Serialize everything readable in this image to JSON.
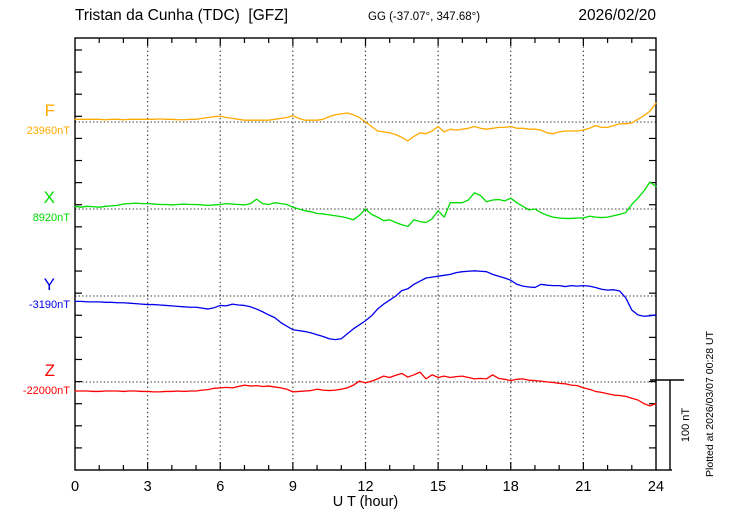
{
  "header": {
    "station_title": "Tristan da Cunha (TDC)  [GFZ]",
    "coords": "GG (-37.07°, 347.68°)",
    "date": "2026/02/20"
  },
  "footer_note": "Plotted at 2026/03/07 00:28 UT",
  "scale_bar": {
    "label": "100 nT",
    "nT": 100
  },
  "chart_data": {
    "type": "line",
    "title": "Tristan da Cunha (TDC) [GFZ] magnetogram 2026/02/20",
    "xlabel": "U T (hour)",
    "x_ticks": [
      0,
      3,
      6,
      9,
      12,
      15,
      18,
      21,
      24
    ],
    "xlim": [
      0,
      24
    ],
    "grid": "vertical-dotted-every-3h, dotted-baseline-per-trace",
    "legend_position": "left-of-axis",
    "step_hours": 0.25,
    "series": [
      {
        "id": "F",
        "label": "F",
        "baseline_label": "23960nT",
        "baseline_value": 23960,
        "color": "#ffaa00",
        "units": "nT",
        "offsets_nT": [
          3,
          3,
          3,
          3,
          3,
          2.5,
          3,
          3,
          2.5,
          3,
          3,
          3,
          3,
          3,
          3.5,
          3,
          3,
          2.5,
          2.5,
          3,
          3,
          4,
          5,
          6,
          6.5,
          5,
          4,
          3,
          2,
          2,
          2,
          2,
          2,
          3,
          4,
          5,
          7,
          4,
          2,
          2,
          2,
          3,
          6,
          8,
          9,
          10,
          8,
          5,
          0,
          -5,
          -10,
          -11,
          -12,
          -14,
          -17,
          -21,
          -16,
          -12,
          -13,
          -10,
          -5,
          -11,
          -8,
          -9,
          -8,
          -7,
          -5,
          -7,
          -8,
          -7,
          -6,
          -6,
          -5,
          -7,
          -7,
          -8,
          -8,
          -9,
          -12,
          -13,
          -11,
          -10,
          -10,
          -10,
          -9,
          -7,
          -4,
          -6,
          -6,
          -4,
          -2,
          -2,
          -1,
          3,
          7,
          12,
          21
        ]
      },
      {
        "id": "X",
        "label": "X",
        "baseline_label": "8920nT",
        "baseline_value": 8920,
        "color": "#00dd00",
        "units": "nT",
        "offsets_nT": [
          3,
          2,
          3,
          2.5,
          2,
          3,
          3.5,
          4,
          5.5,
          6,
          6.5,
          6,
          6,
          5.5,
          5,
          5,
          4.5,
          5,
          5.5,
          5,
          5,
          4.5,
          4,
          4.5,
          5,
          6,
          5.5,
          5,
          4.5,
          6,
          11,
          6,
          5,
          7,
          6,
          5,
          2,
          0,
          -2,
          -3,
          -5,
          -5.5,
          -6.5,
          -7.5,
          -8.5,
          -10,
          -12,
          -7,
          0,
          -6,
          -9,
          -13,
          -12,
          -15,
          -17.5,
          -19.5,
          -12,
          -14,
          -15,
          -11,
          -2,
          -9,
          7,
          7,
          7,
          10,
          18,
          15,
          8,
          10,
          10.5,
          9,
          12,
          7,
          3,
          -1,
          0,
          -4,
          -7,
          -9,
          -10,
          -10.5,
          -10.5,
          -10,
          -10,
          -8,
          -9,
          -9.5,
          -9,
          -7.5,
          -6,
          -4,
          5,
          12,
          20,
          30,
          25
        ]
      },
      {
        "id": "Y",
        "label": "Y",
        "baseline_label": "-3190nT",
        "baseline_value": -3190,
        "color": "#0000ee",
        "units": "nT",
        "offsets_nT": [
          -6,
          -6,
          -6.5,
          -6.5,
          -6.5,
          -7,
          -7,
          -7.5,
          -7.5,
          -8,
          -8.5,
          -9,
          -9.5,
          -9.5,
          -10,
          -10.5,
          -11,
          -11.5,
          -12,
          -12.5,
          -12.5,
          -13.5,
          -14.5,
          -13,
          -10.5,
          -11,
          -9,
          -10,
          -10.5,
          -12,
          -14.5,
          -17.5,
          -21,
          -24,
          -29.5,
          -33.5,
          -37.5,
          -38.5,
          -39.5,
          -41,
          -43,
          -45,
          -47.5,
          -48.5,
          -47.5,
          -42,
          -36.5,
          -32,
          -27.5,
          -22,
          -14.5,
          -9,
          -4.5,
          0,
          6,
          8,
          13,
          16.5,
          20,
          21,
          22,
          23,
          24,
          26,
          27,
          27.5,
          28,
          27.5,
          27,
          24,
          22,
          20,
          17.5,
          13,
          11,
          10,
          9.5,
          13,
          12,
          11.5,
          11.5,
          10.5,
          11.5,
          11,
          11.5,
          11,
          9.5,
          7.5,
          6.5,
          7,
          5.5,
          -2,
          -15.5,
          -21,
          -22.5,
          -22,
          -21
        ]
      },
      {
        "id": "Z",
        "label": "Z",
        "baseline_label": "-22000nT",
        "baseline_value": -22000,
        "color": "#ff0000",
        "units": "nT",
        "offsets_nT": [
          -10,
          -10,
          -10,
          -10.5,
          -10.5,
          -10,
          -10,
          -10,
          -10.5,
          -10,
          -10,
          -10.5,
          -10.5,
          -11,
          -11,
          -10.5,
          -10.5,
          -10,
          -10.5,
          -10,
          -10,
          -9,
          -8.5,
          -7,
          -6.5,
          -6,
          -6.5,
          -5,
          -3.5,
          -4.5,
          -4,
          -5,
          -4.5,
          -5.5,
          -6.5,
          -8,
          -11,
          -10.5,
          -10,
          -9.5,
          -8,
          -9,
          -9.5,
          -9,
          -8,
          -6.5,
          -3.5,
          1,
          -1,
          1,
          3.5,
          6.5,
          5,
          7.5,
          9.5,
          5.5,
          8,
          11,
          3.5,
          8,
          5,
          6.5,
          5,
          6,
          6.5,
          5,
          3.5,
          4,
          3.5,
          8,
          4,
          3,
          1.5,
          3,
          3.5,
          2,
          1.5,
          1,
          0,
          -0.5,
          -1.5,
          -2,
          -3.5,
          -4,
          -6.5,
          -8,
          -10.5,
          -11.5,
          -13,
          -14.5,
          -15,
          -16,
          -18,
          -20,
          -24,
          -26.5,
          -24
        ]
      }
    ]
  }
}
